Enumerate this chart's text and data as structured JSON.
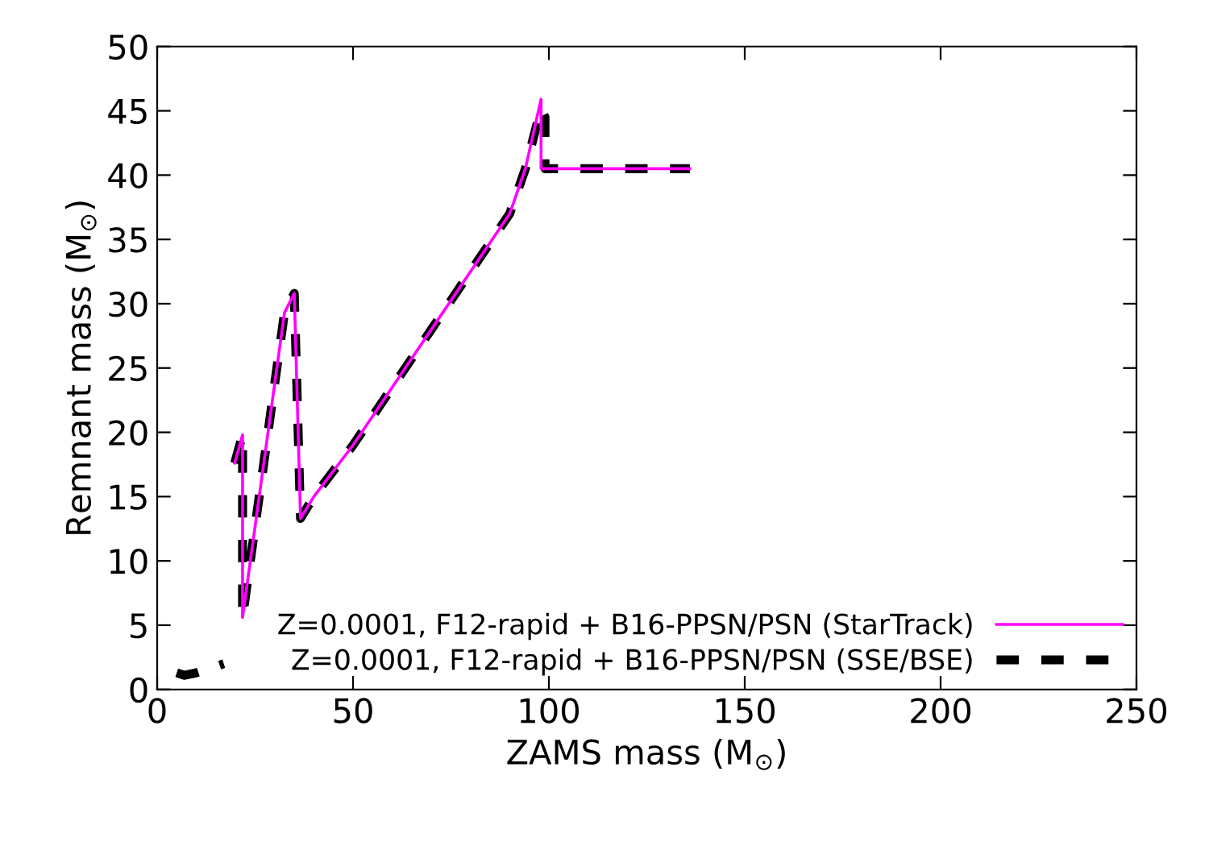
{
  "chart_data": {
    "type": "line",
    "xlabel": "ZAMS mass (M$_{⊙}$)",
    "ylabel": "Remnant mass (M$_{⊙}$)",
    "xlim": [
      0,
      250
    ],
    "xticks": [
      0,
      50,
      100,
      150,
      200,
      250
    ],
    "ylim": [
      0,
      50
    ],
    "yticks": [
      0,
      5,
      10,
      15,
      20,
      25,
      30,
      35,
      40,
      45,
      50
    ],
    "grid": false,
    "legend": "bottom right",
    "series": [
      {
        "name": "Z=0.0001, F12-rapid + B16-PPSN/PSN (StarTrack)",
        "color": "#ff00ff",
        "line_style": "solid",
        "x": [
          19.8,
          21.8,
          21.8,
          32.5,
          35,
          36.6,
          40,
          50,
          60,
          70,
          80,
          90,
          94,
          98,
          98,
          110,
          120,
          136
        ],
        "values": [
          17.6,
          19.8,
          5.6,
          29.3,
          30.8,
          13.3,
          15,
          19,
          23.5,
          28,
          32.5,
          37,
          40.5,
          45.9,
          40.5,
          40.5,
          40.5,
          40.5
        ]
      },
      {
        "name": "Z=0.0001, F12-rapid + B16-PPSN/PSN (SSE/BSE)",
        "color": "#000000",
        "line_style": "dashed",
        "x": [
          5,
          7,
          10,
          17,
          18,
          19.8,
          21.8,
          21.8,
          32.5,
          35,
          36.6,
          40,
          50,
          60,
          70,
          80,
          90,
          94,
          98,
          99,
          99,
          110,
          120,
          136
        ],
        "values": [
          1.3,
          1.1,
          1.3,
          2.0,
          null,
          17.6,
          19.8,
          5.6,
          29.3,
          30.8,
          13.3,
          15,
          19,
          23.5,
          28,
          32.5,
          37,
          40.5,
          45.2,
          44.5,
          40.5,
          40.5,
          40.5,
          40.5
        ]
      }
    ]
  }
}
